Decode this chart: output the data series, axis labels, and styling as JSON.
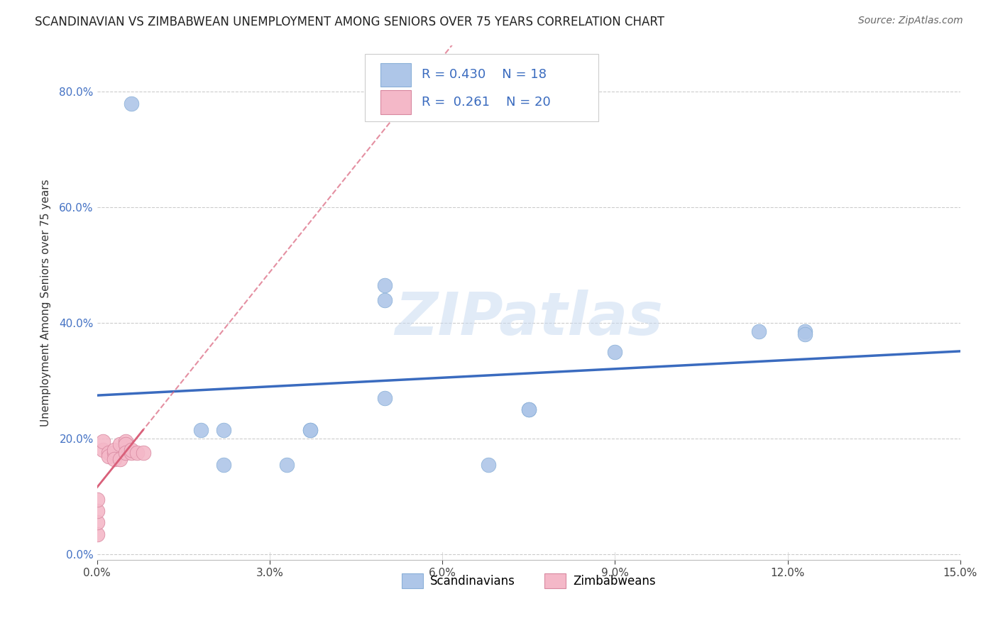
{
  "title": "SCANDINAVIAN VS ZIMBABWEAN UNEMPLOYMENT AMONG SENIORS OVER 75 YEARS CORRELATION CHART",
  "source": "Source: ZipAtlas.com",
  "xlabel_ticks": [
    "0.0%",
    "3.0%",
    "6.0%",
    "9.0%",
    "12.0%",
    "15.0%"
  ],
  "ylabel_ticks": [
    "0.0%",
    "20.0%",
    "40.0%",
    "60.0%",
    "80.0%"
  ],
  "xlim": [
    0.0,
    0.15
  ],
  "ylim": [
    -0.01,
    0.88
  ],
  "ylabel": "Unemployment Among Seniors over 75 years",
  "legend_scandinavian": "Scandinavians",
  "legend_zimbabwean": "Zimbabweans",
  "r_scandinavian": "0.430",
  "n_scandinavian": "18",
  "r_zimbabwean": "0.261",
  "n_zimbabwean": "20",
  "scandinavian_color": "#aec6e8",
  "scandinavian_line_color": "#3a6bbf",
  "zimbabwean_color": "#f4b8c8",
  "zimbabwean_line_color": "#d9607a",
  "watermark": "ZIPatlas",
  "scandinavian_x": [
    0.004,
    0.006,
    0.018,
    0.022,
    0.022,
    0.033,
    0.037,
    0.037,
    0.05,
    0.05,
    0.05,
    0.068,
    0.075,
    0.075,
    0.09,
    0.115,
    0.123,
    0.123
  ],
  "scandinavian_y": [
    0.175,
    0.78,
    0.215,
    0.215,
    0.155,
    0.155,
    0.215,
    0.215,
    0.465,
    0.44,
    0.27,
    0.155,
    0.25,
    0.25,
    0.35,
    0.385,
    0.385,
    0.38
  ],
  "zimbabwean_x": [
    0.0,
    0.0,
    0.0,
    0.0,
    0.001,
    0.001,
    0.002,
    0.002,
    0.003,
    0.003,
    0.003,
    0.004,
    0.004,
    0.005,
    0.005,
    0.005,
    0.006,
    0.006,
    0.007,
    0.008
  ],
  "zimbabwean_y": [
    0.035,
    0.055,
    0.075,
    0.095,
    0.18,
    0.195,
    0.175,
    0.17,
    0.175,
    0.18,
    0.165,
    0.165,
    0.19,
    0.195,
    0.19,
    0.175,
    0.175,
    0.18,
    0.175,
    0.175
  ],
  "background_color": "#ffffff",
  "grid_color": "#cccccc"
}
